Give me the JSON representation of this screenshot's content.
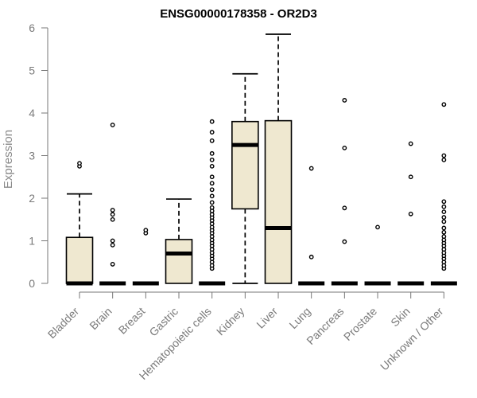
{
  "chart_data": {
    "type": "box",
    "title": "ENSG00000178358 - OR2D3",
    "ylabel": "Expression",
    "xlabel": "",
    "ylim": [
      0,
      6
    ],
    "yticks": [
      "0",
      "1",
      "2",
      "3",
      "4",
      "5",
      "6"
    ],
    "categories": [
      {
        "label": "Bladder",
        "q1": 0,
        "median": 0,
        "q3": 1.08,
        "whisker_low": 0,
        "whisker_high": 2.1,
        "outliers": [
          2.75,
          2.82
        ]
      },
      {
        "label": "Brain",
        "q1": 0,
        "median": 0,
        "q3": 0,
        "whisker_low": 0,
        "whisker_high": 0,
        "outliers": [
          0.45,
          0.9,
          1.0,
          1.5,
          1.62,
          1.72,
          3.72
        ]
      },
      {
        "label": "Breast",
        "q1": 0,
        "median": 0,
        "q3": 0,
        "whisker_low": 0,
        "whisker_high": 0,
        "outliers": [
          1.18,
          1.25
        ]
      },
      {
        "label": "Gastric",
        "q1": 0,
        "median": 0.7,
        "q3": 1.03,
        "whisker_low": 0,
        "whisker_high": 1.98,
        "outliers": []
      },
      {
        "label": "Hematopoietic cells",
        "q1": 0,
        "median": 0,
        "q3": 0,
        "whisker_low": 0,
        "whisker_high": 0,
        "outliers": [
          0.35,
          0.42,
          0.5,
          0.58,
          0.65,
          0.72,
          0.8,
          0.88,
          0.95,
          1.02,
          1.1,
          1.18,
          1.25,
          1.32,
          1.4,
          1.48,
          1.55,
          1.62,
          1.7,
          1.78,
          1.9,
          2.05,
          2.2,
          2.35,
          2.5,
          2.75,
          2.9,
          3.05,
          3.35,
          3.55,
          3.8
        ]
      },
      {
        "label": "Kidney",
        "q1": 1.75,
        "median": 3.25,
        "q3": 3.8,
        "whisker_low": 0,
        "whisker_high": 4.92,
        "outliers": []
      },
      {
        "label": "Liver",
        "q1": 0,
        "median": 1.3,
        "q3": 3.82,
        "whisker_low": 0,
        "whisker_high": 5.85,
        "outliers": []
      },
      {
        "label": "Lung",
        "q1": 0,
        "median": 0,
        "q3": 0,
        "whisker_low": 0,
        "whisker_high": 0,
        "outliers": [
          0.62,
          2.7
        ]
      },
      {
        "label": "Pancreas",
        "q1": 0,
        "median": 0,
        "q3": 0,
        "whisker_low": 0,
        "whisker_high": 0,
        "outliers": [
          0.98,
          1.77,
          3.18,
          4.3
        ]
      },
      {
        "label": "Prostate",
        "q1": 0,
        "median": 0,
        "q3": 0,
        "whisker_low": 0,
        "whisker_high": 0,
        "outliers": [
          1.32
        ]
      },
      {
        "label": "Skin",
        "q1": 0,
        "median": 0,
        "q3": 0,
        "whisker_low": 0,
        "whisker_high": 0,
        "outliers": [
          1.63,
          2.5,
          3.28
        ]
      },
      {
        "label": "Unknown / Other",
        "q1": 0,
        "median": 0,
        "q3": 0,
        "whisker_low": 0,
        "whisker_high": 0,
        "outliers": [
          0.35,
          0.42,
          0.5,
          0.58,
          0.65,
          0.72,
          0.8,
          0.88,
          0.95,
          1.02,
          1.1,
          1.2,
          1.3,
          1.45,
          1.55,
          1.68,
          1.8,
          1.92,
          2.9,
          3.0,
          4.2
        ]
      }
    ]
  }
}
